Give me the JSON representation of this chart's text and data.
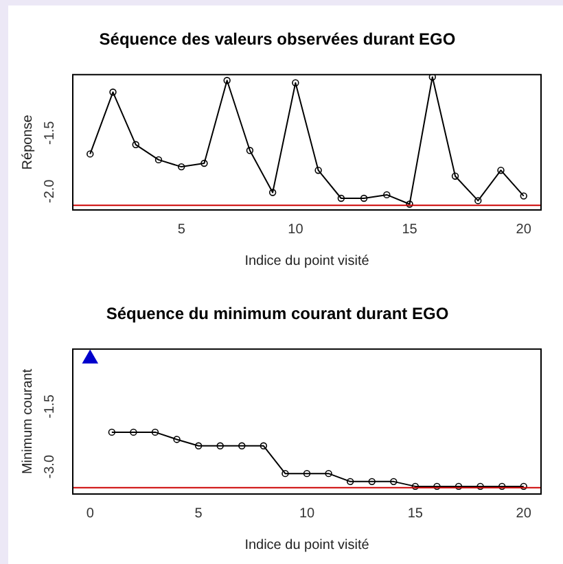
{
  "chart_data": [
    {
      "type": "line",
      "title": "Séquence des valeurs observées durant EGO",
      "xlabel": "Indice du point visité",
      "ylabel": "Réponse",
      "marker": "circle",
      "x": [
        1,
        2,
        3,
        4,
        5,
        6,
        7,
        8,
        9,
        10,
        11,
        12,
        13,
        14,
        15,
        16,
        17,
        18,
        19,
        20
      ],
      "series": [
        {
          "color": "#000000",
          "values": [
            -1.68,
            -1.15,
            -1.6,
            -1.73,
            -1.79,
            -1.76,
            -1.05,
            -1.65,
            -2.01,
            -1.07,
            -1.82,
            -2.06,
            -2.06,
            -2.03,
            -2.11,
            -1.02,
            -1.87,
            -2.08,
            -1.82,
            -2.04
          ]
        }
      ],
      "xlim": [
        0.24,
        20.76
      ],
      "xticks": [
        5,
        10,
        15,
        20
      ],
      "ylim": [
        -2.16,
        -1.0
      ],
      "yticks": [
        {
          "value": -2,
          "label": "-2.0"
        },
        -1.5
      ],
      "ref_lines": [
        {
          "axis": "y",
          "value": -2.12,
          "color": "#cc0000"
        }
      ]
    },
    {
      "type": "line",
      "title": "Séquence du minimum courant durant EGO",
      "xlabel": "Indice du point visité",
      "ylabel": "Minimum courant",
      "marker": "circle",
      "series": [
        {
          "type": "scatter",
          "marker": "triangle",
          "color": "#0000cc",
          "x": [
            0
          ],
          "values": [
            -0.31
          ]
        },
        {
          "color": "#000000",
          "x": [
            1,
            2,
            3,
            4,
            5,
            6,
            7,
            8,
            9,
            10,
            11,
            12,
            13,
            14,
            15,
            16,
            17,
            18,
            19,
            20
          ],
          "values": [
            -2.14,
            -2.14,
            -2.14,
            -2.32,
            -2.48,
            -2.48,
            -2.48,
            -2.48,
            -3.17,
            -3.17,
            -3.17,
            -3.37,
            -3.37,
            -3.37,
            -3.49,
            -3.49,
            -3.49,
            -3.49,
            -3.49,
            -3.49
          ]
        }
      ],
      "xlim": [
        -0.8,
        20.8
      ],
      "xticks": [
        0,
        5,
        10,
        15,
        20
      ],
      "ylim": [
        -3.68,
        -0.07
      ],
      "yticks": [
        {
          "value": -3,
          "label": "-3.0"
        },
        -1.5
      ],
      "ref_lines": [
        {
          "axis": "y",
          "value": -3.52,
          "color": "#cc0000"
        }
      ]
    }
  ]
}
